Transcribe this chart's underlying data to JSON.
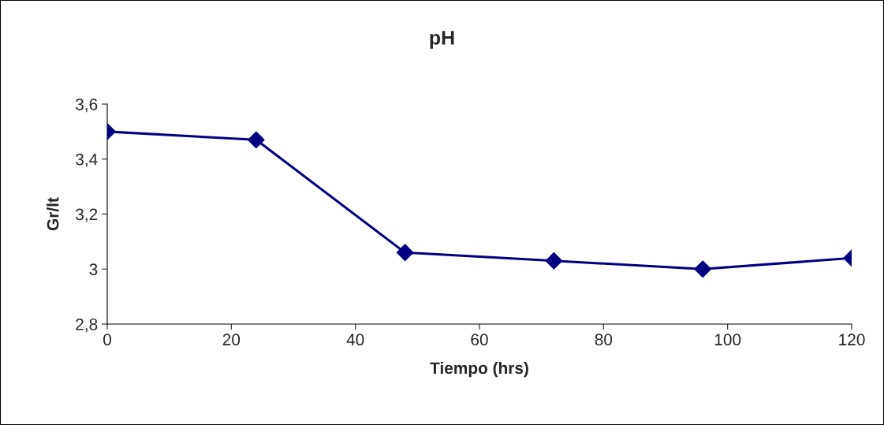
{
  "chart_data": {
    "type": "line",
    "title": "pH",
    "xlabel": "Tiempo (hrs)",
    "ylabel": "Gr/lt",
    "x": [
      0,
      24,
      48,
      72,
      96,
      120
    ],
    "series": [
      {
        "color": "#000080",
        "values": [
          3.5,
          3.47,
          3.06,
          3.03,
          3.0,
          3.04
        ]
      }
    ],
    "xlim": [
      0,
      120
    ],
    "xticks": [
      0,
      20,
      40,
      60,
      80,
      100,
      120
    ],
    "ylim": [
      2.8,
      3.6
    ],
    "yticks": [
      {
        "value": 2.8,
        "label": "2,8"
      },
      {
        "value": 3.0,
        "label": "3"
      },
      {
        "value": 3.2,
        "label": "3,2"
      },
      {
        "value": 3.4,
        "label": "3,4"
      },
      {
        "value": 3.6,
        "label": "3,6"
      }
    ],
    "marker": "diamond",
    "line_style": "solid",
    "grid": false,
    "legend": false
  }
}
